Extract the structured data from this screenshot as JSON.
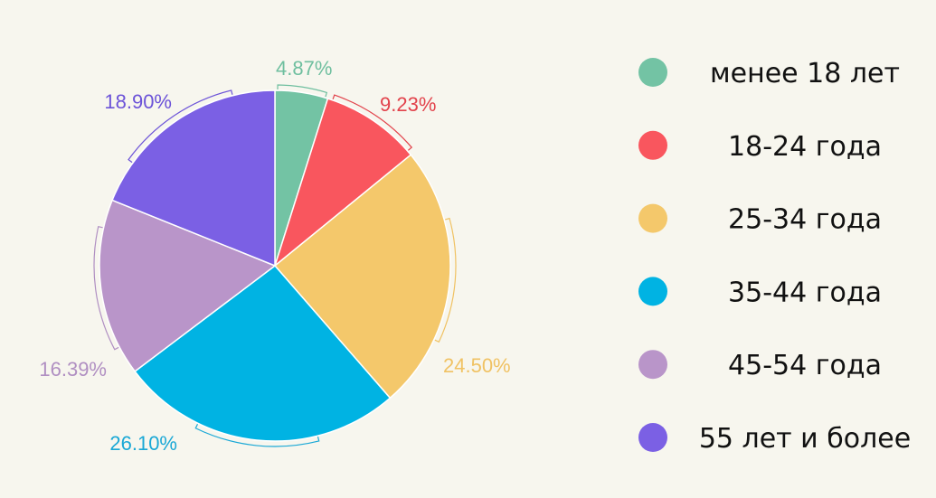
{
  "chart_data": {
    "type": "pie",
    "title": "",
    "categories": [
      "менее 18 лет",
      "18-24 года",
      "25-34 года",
      "35-44 года",
      "45-54 года",
      "55 лет и более"
    ],
    "values": [
      4.87,
      9.23,
      24.5,
      26.1,
      16.39,
      18.9
    ],
    "value_labels": [
      "4.87%",
      "9.23%",
      "24.50%",
      "26.10%",
      "16.39%",
      "18.90%"
    ],
    "colors": [
      "#73c3a4",
      "#f9565e",
      "#f4c86b",
      "#00b3e3",
      "#b995c9",
      "#7b60e4"
    ],
    "label_colors": [
      "#6fbf9f",
      "#e2424b",
      "#f0c263",
      "#1aa8d6",
      "#b08fc2",
      "#6c53d8"
    ],
    "legend": {
      "position": "right"
    },
    "start": "top",
    "direction": "clockwise"
  }
}
